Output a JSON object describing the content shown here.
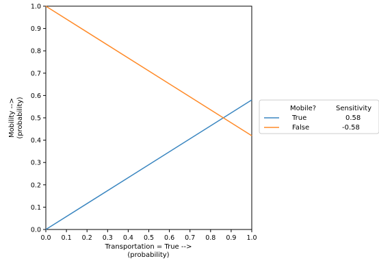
{
  "chart_data": {
    "type": "line",
    "xlabel_line1": "Transportation = True -->",
    "xlabel_line2": "(probability)",
    "ylabel_line1": "Mobility -->",
    "ylabel_line2": "(probability)",
    "xlim": [
      0.0,
      1.0
    ],
    "ylim": [
      0.0,
      1.0
    ],
    "xticks": [
      "0.0",
      "0.1",
      "0.2",
      "0.3",
      "0.4",
      "0.5",
      "0.6",
      "0.7",
      "0.8",
      "0.9",
      "1.0"
    ],
    "yticks": [
      "0.0",
      "0.1",
      "0.2",
      "0.3",
      "0.4",
      "0.5",
      "0.6",
      "0.7",
      "0.8",
      "0.9",
      "1.0"
    ],
    "grid": false,
    "legend_placement": "right-outside",
    "legend_title": "Mobile?",
    "legend_col2_title": "Sensitivity",
    "series": [
      {
        "name": "True",
        "sensitivity": "0.58",
        "color": "#3a86c0",
        "x": [
          0.0,
          1.0
        ],
        "y": [
          0.0,
          0.58
        ]
      },
      {
        "name": "False",
        "sensitivity": "-0.58",
        "color": "#ff8a28",
        "x": [
          0.0,
          1.0
        ],
        "y": [
          1.0,
          0.42
        ]
      }
    ]
  }
}
